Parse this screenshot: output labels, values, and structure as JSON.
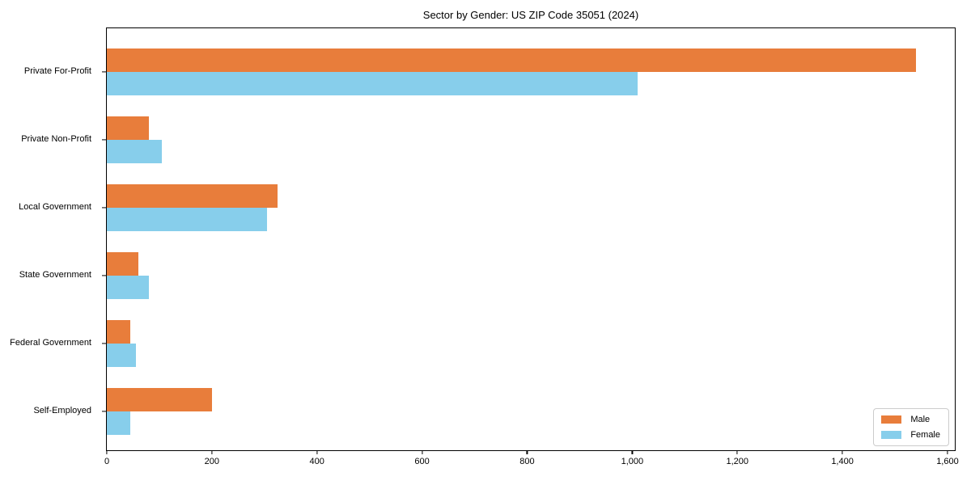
{
  "title": "Sector by Gender: US ZIP Code 35051 (2024)",
  "colors": {
    "male": "#E87D3B",
    "female": "#87CEEB",
    "axis": "#000000",
    "legend_border": "#cccccc",
    "background": "#ffffff"
  },
  "chart_data": {
    "type": "bar",
    "orientation": "horizontal",
    "title": "Sector by Gender: US ZIP Code 35051 (2024)",
    "categories": [
      "Private For-Profit",
      "Private Non-Profit",
      "Local Government",
      "State Government",
      "Federal Government",
      "Self-Employed"
    ],
    "series": [
      {
        "name": "Male",
        "color": "#E87D3B",
        "values": [
          1540,
          80,
          325,
          60,
          45,
          200
        ]
      },
      {
        "name": "Female",
        "color": "#87CEEB",
        "values": [
          1010,
          105,
          305,
          80,
          55,
          45
        ]
      }
    ],
    "xlabel": "",
    "ylabel": "",
    "xlim": [
      0,
      1617
    ],
    "xticks": [
      0,
      200,
      400,
      600,
      800,
      1000,
      1200,
      1400,
      1600
    ],
    "xtick_labels": [
      "0",
      "200",
      "400",
      "600",
      "800",
      "1,000",
      "1,200",
      "1,400",
      "1,600"
    ],
    "grid": false,
    "legend_position": "lower right",
    "legend_entries": [
      "Male",
      "Female"
    ]
  }
}
